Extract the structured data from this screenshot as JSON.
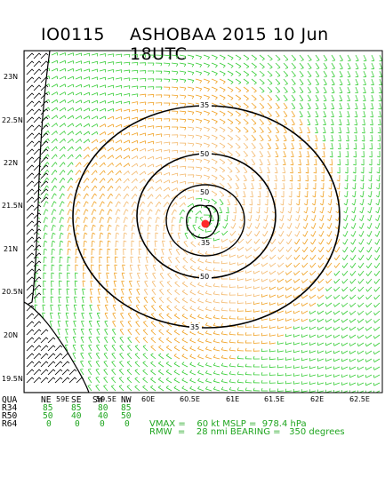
{
  "title": {
    "id": "IO0115",
    "storm": "ASHOBAA 2015 10 Jun 18UTC"
  },
  "map": {
    "lat_labels": [
      "23N",
      "22.5N",
      "22N",
      "21.5N",
      "21N",
      "20.5N",
      "20N",
      "19.5N"
    ],
    "lon_labels": [
      "59E",
      "59.5E",
      "60E",
      "60.5E",
      "61E",
      "61.5E",
      "62E",
      "62.5E"
    ],
    "contours": [
      "35",
      "50",
      "50",
      "35",
      "50",
      "35"
    ],
    "colors": {
      "wind_35": "#33cc33",
      "wind_50": "#f0a020",
      "wind_64": "#e03010",
      "land": "#000000",
      "center": "#ff2a2a"
    }
  },
  "radii_table": {
    "header": [
      "QUA",
      "NE",
      "SE",
      "SW",
      "NW"
    ],
    "rows": [
      {
        "label": "R34",
        "values": [
          "85",
          "85",
          "80",
          "85"
        ]
      },
      {
        "label": "R50",
        "values": [
          "50",
          "40",
          "40",
          "50"
        ]
      },
      {
        "label": "R64",
        "values": [
          "0",
          "0",
          "0",
          "0"
        ]
      }
    ]
  },
  "summary": {
    "line1": "VMAX =    60 kt MSLP =  978.4 hPa",
    "line2": "RMW  =    28 nmi BEARING =   350 degrees"
  }
}
